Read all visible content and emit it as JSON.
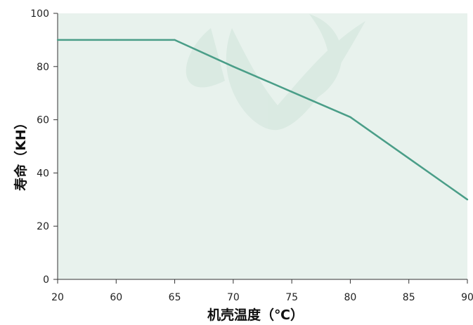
{
  "chart_data": {
    "type": "line",
    "xlabel": "机壳温度（℃）",
    "ylabel": "寿命（KH）",
    "categories": [
      "20",
      "60",
      "65",
      "70",
      "75",
      "80",
      "85",
      "90"
    ],
    "series": [
      {
        "values": [
          90,
          90,
          90,
          80,
          70.5,
          61,
          45.5,
          30
        ]
      }
    ],
    "ylim": [
      0,
      100
    ],
    "yticks": [
      0,
      20,
      40,
      60,
      80,
      100
    ],
    "grid": false,
    "colors": {
      "plot_background": "#e8f2ed",
      "line": "#4a9e88",
      "axis": "#333333",
      "watermark": "#cfe4da"
    }
  }
}
